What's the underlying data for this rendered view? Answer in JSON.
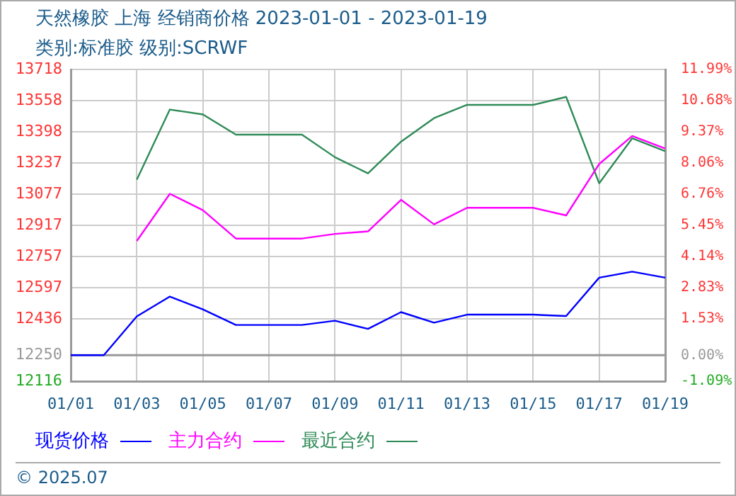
{
  "chart_data": {
    "type": "line",
    "title": "天然橡胶 上海 经销商价格 2023-01-01 - 2023-01-19",
    "subtitle": "类别:标准胶 级别:SCRWF",
    "categories": [
      "01/01",
      null,
      "01/03",
      null,
      "01/05",
      null,
      "01/07",
      null,
      "01/09",
      null,
      "01/11",
      null,
      "01/13",
      null,
      "01/15",
      null,
      "01/17",
      null,
      "01/19"
    ],
    "series": [
      {
        "name": "现货价格",
        "color": "#0000ff",
        "values": [
          12250,
          12250,
          12449,
          12551,
          12485,
          12405,
          12405,
          12405,
          12427,
          12385,
          12471,
          12417,
          12458,
          12458,
          12458,
          12451,
          12648,
          12679,
          12648
        ]
      },
      {
        "name": "主力合约",
        "color": "#ff00ff",
        "values": [
          null,
          null,
          12837,
          13079,
          12995,
          12849,
          12849,
          12849,
          12873,
          12886,
          13048,
          12922,
          13007,
          13007,
          13007,
          12968,
          13232,
          13376,
          13312
        ]
      },
      {
        "name": "最近合约",
        "color": "#2e8b57",
        "values": [
          null,
          null,
          13152,
          13512,
          13487,
          13383,
          13383,
          13383,
          13267,
          13184,
          13347,
          13468,
          13536,
          13536,
          13536,
          13577,
          13133,
          13364,
          13298
        ]
      }
    ],
    "ylim": [
      12116,
      13718
    ],
    "yticks": [
      12116,
      12250,
      12436,
      12597,
      12757,
      12917,
      13077,
      13237,
      13398,
      13558,
      13718
    ],
    "y2lim": [
      -1.09,
      11.99
    ],
    "y2ticks": [
      {
        "value": -1.09,
        "label": "-1.09%"
      },
      {
        "value": 0,
        "label": "0.00%"
      },
      {
        "value": 1.53,
        "label": "1.53%"
      },
      {
        "value": 2.83,
        "label": "2.83%"
      },
      {
        "value": 4.14,
        "label": "4.14%"
      },
      {
        "value": 5.45,
        "label": "5.45%"
      },
      {
        "value": 6.76,
        "label": "6.76%"
      },
      {
        "value": 8.06,
        "label": "8.06%"
      },
      {
        "value": 9.37,
        "label": "9.37%"
      },
      {
        "value": 10.68,
        "label": "10.68%"
      },
      {
        "value": 11.99,
        "label": "11.99%"
      }
    ],
    "ref_lines": [
      {
        "axis": "y2",
        "value": 0,
        "color": "#999999"
      }
    ],
    "grid": true,
    "legend": "bottom",
    "marker": "none",
    "line_style": "solid",
    "annotations": [
      "© 2025.07"
    ]
  }
}
